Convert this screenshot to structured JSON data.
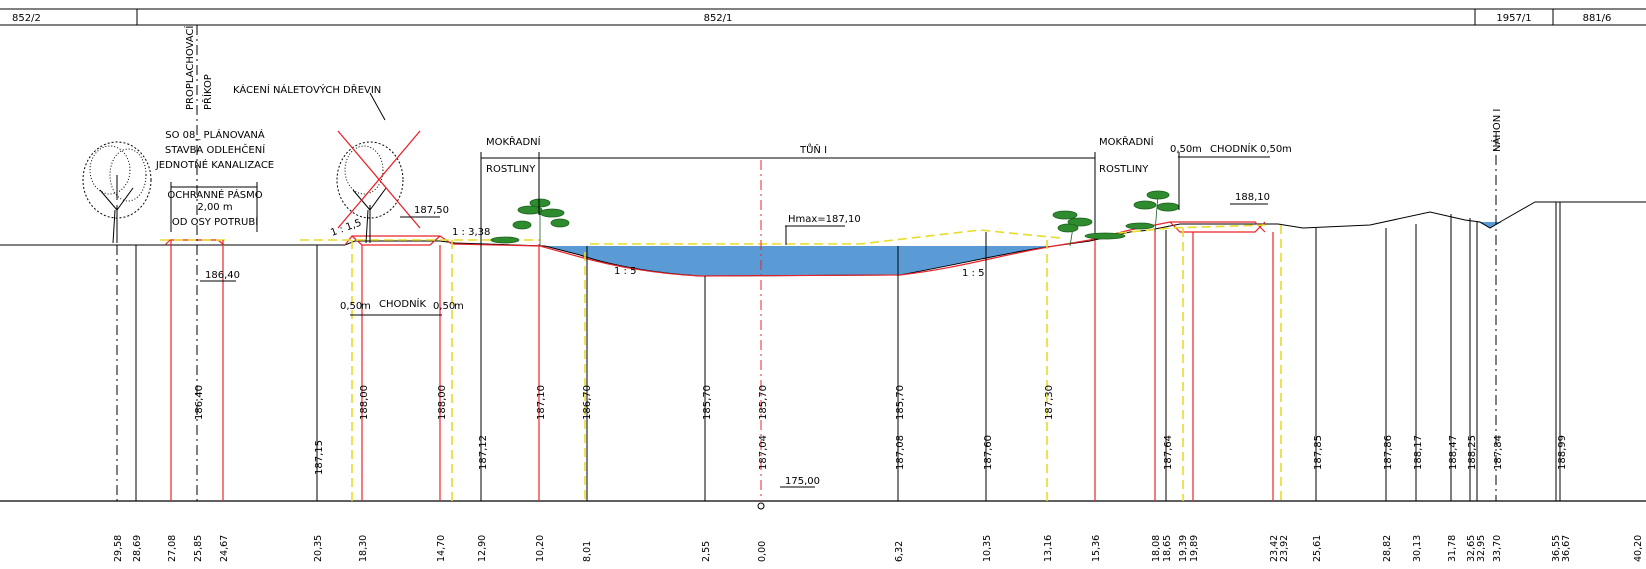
{
  "parcels": [
    "852/2",
    "852/1",
    "1957/1",
    "881/6"
  ],
  "labels": {
    "proplach1": "PROPLACHOVACÍ",
    "proplach2": "PŘÍKOP",
    "kaceni": "KÁCENÍ NÁLETOVÝCH DŘEVIN",
    "so08_1": "SO 08_ PLÁNOVANÁ",
    "so08_2": "STAVBA ODLEHČENÍ",
    "so08_3": "JEDNOTNÉ KANALIZACE",
    "pasmo1": "OCHRANNÉ PÁSMO",
    "pasmo2": "2,00 m",
    "pasmo3": "OD OSY POTRUBÍ",
    "mokradni": "MOKŘADNÍ",
    "rostliny": "ROSTLINY",
    "tun": "TŮŇ  I",
    "chodnik": "CHODNÍK",
    "w050": "0,50",
    "m": "m",
    "nahon": "NÁHON  I",
    "hmax": "Hmax=187,10",
    "slope15": "1 : 5",
    "slope115": "1 : 1,5",
    "slope133": "1 : 3,38",
    "lvl18750": "187,50",
    "lvl18640": "186,40",
    "lvl18810": "188,10",
    "datum": "175,00"
  },
  "heights": [
    "186,40",
    "187,15",
    "188,00",
    "188,00",
    "187,12",
    "187,10",
    "186,70",
    "185,70",
    "185,70",
    "187,04",
    "185,70",
    "187,08",
    "187,60",
    "187,30",
    "187,64",
    "187,85",
    "187,86",
    "188,17",
    "188,47",
    "188,25",
    "187,84",
    "188,99"
  ],
  "stations": [
    "29,58",
    "28,69",
    "27,08",
    "25,85",
    "24,67",
    "20,35",
    "18,30",
    "14,70",
    "12,90",
    "10,20",
    "8,01",
    "2,55",
    "0,00",
    "6,32",
    "10,35",
    "13,16",
    "15,36",
    "18,08",
    "18,65",
    "19,39",
    "19,89",
    "23,42",
    "23,92",
    "25,61",
    "28,82",
    "30,13",
    "31,78",
    "32,65",
    "32,95",
    "33,70",
    "36,55",
    "36,67",
    "40,20"
  ],
  "colors": {
    "water": "#5b9bd5",
    "design": "#e8242b",
    "axis_yellow": "#e8dc2a",
    "plants": "#2e8b2e"
  }
}
